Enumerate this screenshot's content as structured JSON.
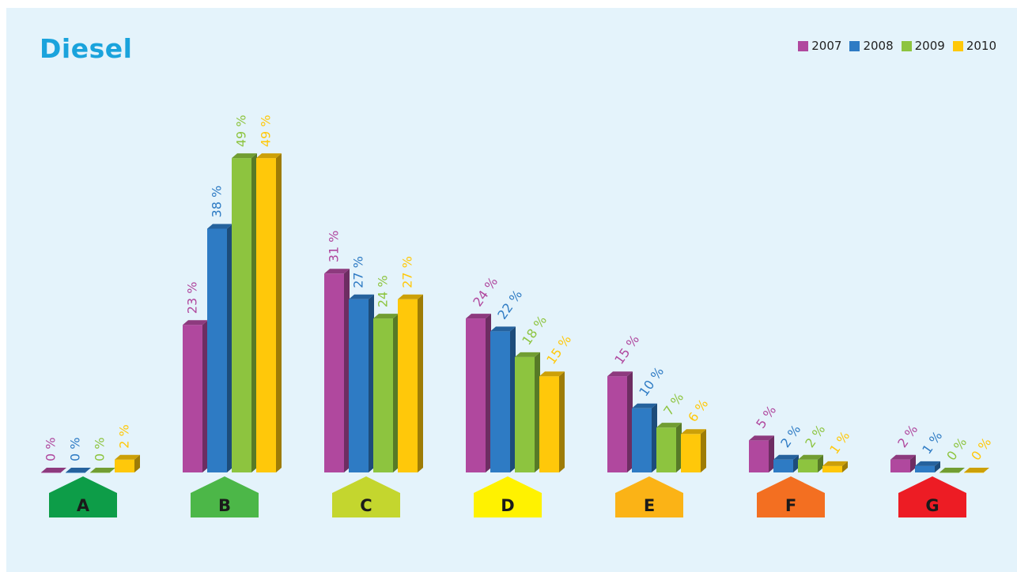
{
  "chart_data": {
    "type": "bar",
    "title": "Diesel",
    "categories": [
      "A",
      "B",
      "C",
      "D",
      "E",
      "F",
      "G"
    ],
    "series": [
      {
        "name": "2007",
        "color": "#b0489e",
        "values": [
          0,
          23,
          31,
          24,
          15,
          5,
          2
        ]
      },
      {
        "name": "2008",
        "color": "#2e7bc4",
        "values": [
          0,
          38,
          27,
          22,
          10,
          2,
          1
        ]
      },
      {
        "name": "2009",
        "color": "#8dc43f",
        "values": [
          0,
          49,
          24,
          18,
          7,
          2,
          0
        ]
      },
      {
        "name": "2010",
        "color": "#ffc80a",
        "values": [
          2,
          49,
          27,
          15,
          6,
          1,
          0
        ]
      }
    ],
    "label_suffix": " %",
    "category_colors": [
      "#0d9d48",
      "#4cb748",
      "#c4d62e",
      "#fff200",
      "#fbb316",
      "#f36f21",
      "#ed1c24"
    ],
    "legend_position": "top-right",
    "grid": false,
    "ylim": [
      0,
      50
    ]
  }
}
